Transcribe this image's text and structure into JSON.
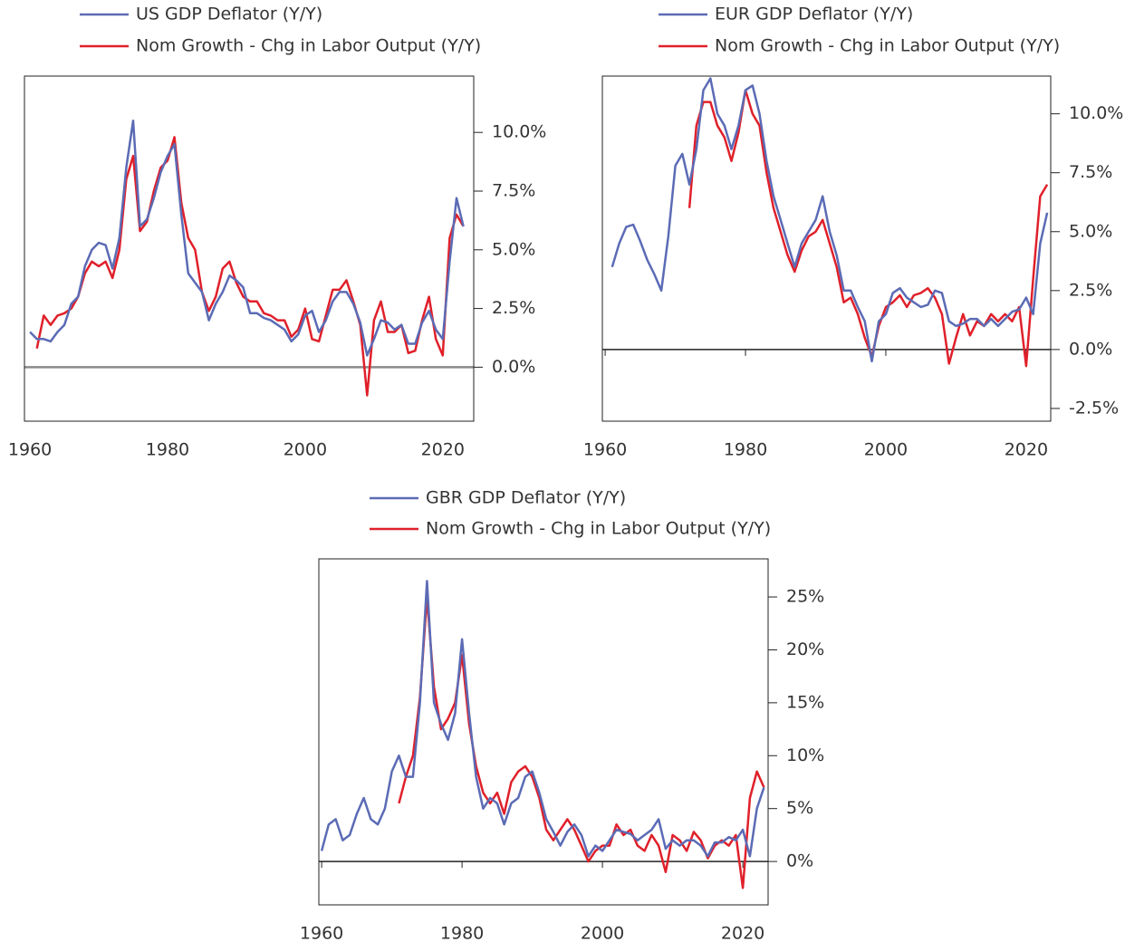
{
  "chart_data": [
    {
      "type": "line",
      "x": [
        1960,
        1961,
        1962,
        1963,
        1964,
        1965,
        1966,
        1967,
        1968,
        1969,
        1970,
        1971,
        1972,
        1973,
        1974,
        1975,
        1976,
        1977,
        1978,
        1979,
        1980,
        1981,
        1982,
        1983,
        1984,
        1985,
        1986,
        1987,
        1988,
        1989,
        1990,
        1991,
        1992,
        1993,
        1994,
        1995,
        1996,
        1997,
        1998,
        1999,
        2000,
        2001,
        2002,
        2003,
        2004,
        2005,
        2006,
        2007,
        2008,
        2009,
        2010,
        2011,
        2012,
        2013,
        2014,
        2015,
        2016,
        2017,
        2018,
        2019,
        2020,
        2021,
        2022,
        2023
      ],
      "series": [
        {
          "name": "US GDP Deflator (Y/Y)",
          "color": "#5b6bb5",
          "values": [
            1.5,
            1.2,
            1.2,
            1.1,
            1.5,
            1.8,
            2.7,
            3.0,
            4.3,
            5.0,
            5.3,
            5.2,
            4.2,
            5.5,
            8.5,
            10.5,
            6.0,
            6.3,
            7.2,
            8.3,
            9.0,
            9.5,
            6.5,
            4.0,
            3.6,
            3.2,
            2.0,
            2.7,
            3.2,
            3.9,
            3.7,
            3.4,
            2.3,
            2.3,
            2.1,
            2.0,
            1.8,
            1.6,
            1.1,
            1.4,
            2.2,
            2.4,
            1.5,
            2.0,
            2.8,
            3.2,
            3.2,
            2.7,
            1.9,
            0.5,
            1.2,
            2.0,
            1.9,
            1.6,
            1.8,
            1.0,
            1.0,
            1.9,
            2.4,
            1.6,
            1.2,
            4.5,
            7.2,
            6.0
          ]
        },
        {
          "name": "Nom Growth - Chg in Labor Output (Y/Y)",
          "color": "#e0202a",
          "values": [
            null,
            0.8,
            2.2,
            1.8,
            2.2,
            2.3,
            2.5,
            3.0,
            4.0,
            4.5,
            4.3,
            4.5,
            3.8,
            5.0,
            8.0,
            9.0,
            5.8,
            6.2,
            7.5,
            8.5,
            8.8,
            9.8,
            7.0,
            5.5,
            5.0,
            3.2,
            2.4,
            3.0,
            4.2,
            4.5,
            3.6,
            3.0,
            2.8,
            2.8,
            2.3,
            2.2,
            2.0,
            2.0,
            1.3,
            1.6,
            2.5,
            1.2,
            1.1,
            2.2,
            3.3,
            3.3,
            3.7,
            2.8,
            1.8,
            -1.2,
            2.0,
            2.8,
            1.5,
            1.5,
            1.8,
            0.6,
            0.7,
            2.0,
            3.0,
            1.2,
            0.5,
            5.5,
            6.5,
            6.0
          ]
        }
      ],
      "xlim": [
        1959.2,
        2024.5
      ],
      "xticks": [
        1960,
        1980,
        2000,
        2020
      ],
      "ylim": [
        -2.3,
        12.4
      ],
      "yticks": [
        {
          "value": 0,
          "label": "0.0%"
        },
        {
          "value": 2.5,
          "label": "2.5%"
        },
        {
          "value": 5,
          "label": "5.0%"
        },
        {
          "value": 7.5,
          "label": "7.5%"
        },
        {
          "value": 10,
          "label": "10.0%"
        }
      ]
    },
    {
      "type": "line",
      "x": [
        1961,
        1962,
        1963,
        1964,
        1965,
        1966,
        1967,
        1968,
        1969,
        1970,
        1971,
        1972,
        1973,
        1974,
        1975,
        1976,
        1977,
        1978,
        1979,
        1980,
        1981,
        1982,
        1983,
        1984,
        1985,
        1986,
        1987,
        1988,
        1989,
        1990,
        1991,
        1992,
        1993,
        1994,
        1995,
        1996,
        1997,
        1998,
        1999,
        2000,
        2001,
        2002,
        2003,
        2004,
        2005,
        2006,
        2007,
        2008,
        2009,
        2010,
        2011,
        2012,
        2013,
        2014,
        2015,
        2016,
        2017,
        2018,
        2019,
        2020,
        2021,
        2022,
        2023
      ],
      "series": [
        {
          "name": "EUR GDP Deflator (Y/Y)",
          "color": "#5b6bb5",
          "values": [
            3.5,
            4.5,
            5.2,
            5.3,
            4.6,
            3.8,
            3.2,
            2.5,
            4.8,
            7.8,
            8.3,
            7.0,
            8.5,
            11.0,
            11.5,
            10.0,
            9.5,
            8.5,
            9.5,
            11.0,
            11.2,
            10.0,
            8.0,
            6.5,
            5.5,
            4.5,
            3.5,
            4.5,
            5.0,
            5.5,
            6.5,
            5.0,
            4.0,
            2.5,
            2.5,
            1.8,
            1.2,
            -0.5,
            1.2,
            1.5,
            2.4,
            2.6,
            2.2,
            2.0,
            1.8,
            1.9,
            2.5,
            2.4,
            1.2,
            1.0,
            1.1,
            1.3,
            1.3,
            1.0,
            1.3,
            1.0,
            1.3,
            1.6,
            1.7,
            2.2,
            1.5,
            4.5,
            5.8
          ]
        },
        {
          "name": "Nom Growth - Chg in Labor Output (Y/Y)",
          "color": "#e0202a",
          "values": [
            null,
            null,
            null,
            null,
            null,
            null,
            null,
            null,
            null,
            null,
            null,
            6.0,
            9.5,
            10.5,
            10.5,
            9.5,
            9.0,
            8.0,
            9.2,
            11.0,
            10.0,
            9.5,
            7.5,
            6.0,
            5.0,
            4.0,
            3.3,
            4.2,
            4.8,
            5.0,
            5.5,
            4.5,
            3.5,
            2.0,
            2.2,
            1.5,
            0.5,
            -0.3,
            1.0,
            1.8,
            2.0,
            2.3,
            1.8,
            2.3,
            2.4,
            2.6,
            2.2,
            1.5,
            -0.6,
            0.5,
            1.5,
            0.6,
            1.2,
            1.0,
            1.5,
            1.2,
            1.5,
            1.2,
            1.8,
            -0.7,
            3.0,
            6.5,
            7.0
          ]
        }
      ],
      "xlim": [
        1959.6,
        2023.5
      ],
      "xticks": [
        1960,
        1980,
        2000,
        2020
      ],
      "ylim": [
        -3.04,
        11.6
      ],
      "yticks": [
        {
          "value": -2.5,
          "label": "-2.5%"
        },
        {
          "value": 0,
          "label": "0.0%"
        },
        {
          "value": 2.5,
          "label": "2.5%"
        },
        {
          "value": 5,
          "label": "5.0%"
        },
        {
          "value": 7.5,
          "label": "7.5%"
        },
        {
          "value": 10,
          "label": "10.0%"
        }
      ]
    },
    {
      "type": "line",
      "x": [
        1960,
        1961,
        1962,
        1963,
        1964,
        1965,
        1966,
        1967,
        1968,
        1969,
        1970,
        1971,
        1972,
        1973,
        1974,
        1975,
        1976,
        1977,
        1978,
        1979,
        1980,
        1981,
        1982,
        1983,
        1984,
        1985,
        1986,
        1987,
        1988,
        1989,
        1990,
        1991,
        1992,
        1993,
        1994,
        1995,
        1996,
        1997,
        1998,
        1999,
        2000,
        2001,
        2002,
        2003,
        2004,
        2005,
        2006,
        2007,
        2008,
        2009,
        2010,
        2011,
        2012,
        2013,
        2014,
        2015,
        2016,
        2017,
        2018,
        2019,
        2020,
        2021,
        2022,
        2023
      ],
      "series": [
        {
          "name": "GBR GDP Deflator (Y/Y)",
          "color": "#5b6bb5",
          "values": [
            1.0,
            3.5,
            4.0,
            2.0,
            2.5,
            4.5,
            6.0,
            4.0,
            3.5,
            5.0,
            8.5,
            10.0,
            8.0,
            8.0,
            15.0,
            26.5,
            15.0,
            13.0,
            11.5,
            14.0,
            21.0,
            14.0,
            8.0,
            5.0,
            6.0,
            5.5,
            3.5,
            5.5,
            6.0,
            8.0,
            8.5,
            6.5,
            4.0,
            2.8,
            1.5,
            2.8,
            3.5,
            2.5,
            0.5,
            1.5,
            1.0,
            2.0,
            3.0,
            2.8,
            2.6,
            2.0,
            2.5,
            3.0,
            4.0,
            1.2,
            2.0,
            1.5,
            2.0,
            2.0,
            1.5,
            0.5,
            1.8,
            1.8,
            2.3,
            2.0,
            3.0,
            0.5,
            5.0,
            7.0
          ]
        },
        {
          "name": "Nom Growth - Chg in Labor Output (Y/Y)",
          "color": "#e0202a",
          "values": [
            null,
            null,
            null,
            null,
            null,
            null,
            null,
            null,
            null,
            null,
            null,
            5.5,
            8.0,
            10.0,
            15.5,
            25.0,
            16.5,
            12.5,
            13.5,
            15.0,
            19.5,
            13.0,
            9.0,
            6.5,
            5.5,
            6.5,
            4.5,
            7.5,
            8.5,
            9.0,
            8.0,
            6.0,
            3.0,
            2.0,
            3.0,
            4.0,
            3.0,
            1.5,
            0.0,
            1.0,
            1.5,
            1.5,
            3.5,
            2.5,
            3.0,
            1.5,
            1.0,
            2.5,
            1.5,
            -1.0,
            2.5,
            2.0,
            1.0,
            2.8,
            2.0,
            0.3,
            1.5,
            2.0,
            1.5,
            2.5,
            -2.5,
            6.0,
            8.5,
            7.0
          ]
        }
      ],
      "xlim": [
        1959.6,
        2023.6
      ],
      "xticks": [
        1960,
        1980,
        2000,
        2020
      ],
      "ylim": [
        -4.1,
        28.6
      ],
      "yticks": [
        {
          "value": 0,
          "label": "0%"
        },
        {
          "value": 5,
          "label": "5%"
        },
        {
          "value": 10,
          "label": "10%"
        },
        {
          "value": 15,
          "label": "15%"
        },
        {
          "value": 20,
          "label": "20%"
        },
        {
          "value": 25,
          "label": "25%"
        }
      ]
    }
  ]
}
